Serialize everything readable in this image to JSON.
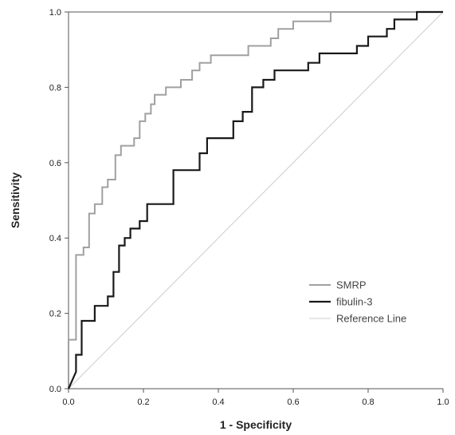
{
  "chart_data": {
    "type": "line",
    "title": "",
    "xlabel": "1 - Specificity",
    "ylabel": "Sensitivity",
    "xlim": [
      0,
      1
    ],
    "ylim": [
      0,
      1
    ],
    "x_ticks": [
      "0.0",
      "0.2",
      "0.4",
      "0.6",
      "0.8",
      "1.0"
    ],
    "y_ticks": [
      "0.0",
      "0.2",
      "0.4",
      "0.6",
      "0.8",
      "1.0"
    ],
    "grid": false,
    "legend_position": "bottom-right",
    "series": [
      {
        "name": "SMRP",
        "color": "#a0a0a0",
        "points": [
          [
            0.0,
            0.0
          ],
          [
            0.0,
            0.13
          ],
          [
            0.02,
            0.13
          ],
          [
            0.02,
            0.355
          ],
          [
            0.04,
            0.355
          ],
          [
            0.04,
            0.375
          ],
          [
            0.055,
            0.375
          ],
          [
            0.055,
            0.465
          ],
          [
            0.07,
            0.465
          ],
          [
            0.07,
            0.49
          ],
          [
            0.09,
            0.49
          ],
          [
            0.09,
            0.535
          ],
          [
            0.105,
            0.535
          ],
          [
            0.105,
            0.555
          ],
          [
            0.125,
            0.555
          ],
          [
            0.125,
            0.62
          ],
          [
            0.14,
            0.62
          ],
          [
            0.14,
            0.645
          ],
          [
            0.175,
            0.645
          ],
          [
            0.175,
            0.665
          ],
          [
            0.19,
            0.665
          ],
          [
            0.19,
            0.71
          ],
          [
            0.205,
            0.71
          ],
          [
            0.205,
            0.73
          ],
          [
            0.22,
            0.73
          ],
          [
            0.22,
            0.755
          ],
          [
            0.23,
            0.755
          ],
          [
            0.23,
            0.78
          ],
          [
            0.26,
            0.78
          ],
          [
            0.26,
            0.8
          ],
          [
            0.3,
            0.8
          ],
          [
            0.3,
            0.82
          ],
          [
            0.33,
            0.82
          ],
          [
            0.33,
            0.845
          ],
          [
            0.35,
            0.845
          ],
          [
            0.35,
            0.865
          ],
          [
            0.38,
            0.865
          ],
          [
            0.38,
            0.885
          ],
          [
            0.48,
            0.885
          ],
          [
            0.48,
            0.91
          ],
          [
            0.54,
            0.91
          ],
          [
            0.54,
            0.93
          ],
          [
            0.56,
            0.93
          ],
          [
            0.56,
            0.955
          ],
          [
            0.6,
            0.955
          ],
          [
            0.6,
            0.975
          ],
          [
            0.7,
            0.975
          ],
          [
            0.7,
            1.0
          ],
          [
            1.0,
            1.0
          ]
        ]
      },
      {
        "name": "fibulin-3",
        "color": "#1a1a1a",
        "points": [
          [
            0.0,
            0.0
          ],
          [
            0.02,
            0.045
          ],
          [
            0.02,
            0.09
          ],
          [
            0.035,
            0.09
          ],
          [
            0.035,
            0.18
          ],
          [
            0.07,
            0.18
          ],
          [
            0.07,
            0.22
          ],
          [
            0.105,
            0.22
          ],
          [
            0.105,
            0.245
          ],
          [
            0.12,
            0.245
          ],
          [
            0.12,
            0.31
          ],
          [
            0.135,
            0.31
          ],
          [
            0.135,
            0.38
          ],
          [
            0.15,
            0.38
          ],
          [
            0.15,
            0.4
          ],
          [
            0.165,
            0.4
          ],
          [
            0.165,
            0.425
          ],
          [
            0.19,
            0.425
          ],
          [
            0.19,
            0.445
          ],
          [
            0.21,
            0.445
          ],
          [
            0.21,
            0.49
          ],
          [
            0.28,
            0.49
          ],
          [
            0.28,
            0.58
          ],
          [
            0.35,
            0.58
          ],
          [
            0.35,
            0.625
          ],
          [
            0.37,
            0.625
          ],
          [
            0.37,
            0.665
          ],
          [
            0.44,
            0.665
          ],
          [
            0.44,
            0.71
          ],
          [
            0.465,
            0.71
          ],
          [
            0.465,
            0.735
          ],
          [
            0.49,
            0.735
          ],
          [
            0.49,
            0.8
          ],
          [
            0.52,
            0.8
          ],
          [
            0.52,
            0.82
          ],
          [
            0.55,
            0.82
          ],
          [
            0.55,
            0.845
          ],
          [
            0.64,
            0.845
          ],
          [
            0.64,
            0.865
          ],
          [
            0.67,
            0.865
          ],
          [
            0.67,
            0.89
          ],
          [
            0.77,
            0.89
          ],
          [
            0.77,
            0.91
          ],
          [
            0.8,
            0.91
          ],
          [
            0.8,
            0.935
          ],
          [
            0.85,
            0.935
          ],
          [
            0.85,
            0.955
          ],
          [
            0.87,
            0.955
          ],
          [
            0.87,
            0.98
          ],
          [
            0.93,
            0.98
          ],
          [
            0.93,
            1.0
          ],
          [
            1.0,
            1.0
          ]
        ]
      },
      {
        "name": "Reference Line",
        "color": "#cccccc",
        "points": [
          [
            0.0,
            0.0
          ],
          [
            1.0,
            1.0
          ]
        ]
      }
    ]
  }
}
